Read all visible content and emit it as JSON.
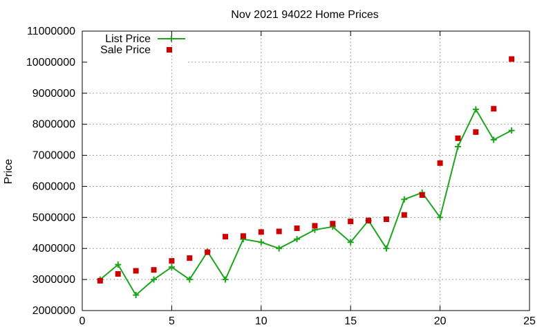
{
  "chart_data": {
    "type": "line",
    "title": "Nov 2021 94022 Home Prices",
    "xlabel": "",
    "ylabel": "Price",
    "xlim": [
      0,
      25
    ],
    "ylim": [
      2000000,
      11000000
    ],
    "x_ticks": [
      0,
      5,
      10,
      15,
      20,
      25
    ],
    "y_ticks": [
      2000000,
      3000000,
      4000000,
      5000000,
      6000000,
      7000000,
      8000000,
      9000000,
      10000000,
      11000000
    ],
    "grid": true,
    "legend_position": "top-left",
    "series": [
      {
        "name": "List Price",
        "style": "line+cross",
        "color": "#1ca51c",
        "x": [
          1,
          2,
          3,
          4,
          5,
          6,
          7,
          8,
          9,
          10,
          11,
          12,
          13,
          14,
          15,
          16,
          17,
          18,
          19,
          20,
          21,
          22,
          23,
          24
        ],
        "y": [
          3000000,
          3480000,
          2500000,
          3000000,
          3400000,
          3000000,
          3900000,
          3000000,
          4300000,
          4200000,
          4000000,
          4300000,
          4600000,
          4700000,
          4200000,
          4900000,
          4000000,
          5580000,
          5800000,
          5000000,
          7280000,
          8480000,
          7500000,
          7800000
        ]
      },
      {
        "name": "Sale Price",
        "style": "square-markers",
        "color": "#cc0000",
        "x": [
          1,
          2,
          3,
          4,
          5,
          6,
          7,
          8,
          9,
          10,
          11,
          12,
          13,
          14,
          15,
          16,
          17,
          18,
          19,
          20,
          21,
          22,
          23,
          24
        ],
        "y": [
          2960000,
          3180000,
          3280000,
          3310000,
          3600000,
          3690000,
          3880000,
          4380000,
          4400000,
          4530000,
          4550000,
          4650000,
          4730000,
          4800000,
          4870000,
          4900000,
          4940000,
          5080000,
          5720000,
          6750000,
          7550000,
          7750000,
          8500000,
          10100000
        ]
      }
    ]
  }
}
